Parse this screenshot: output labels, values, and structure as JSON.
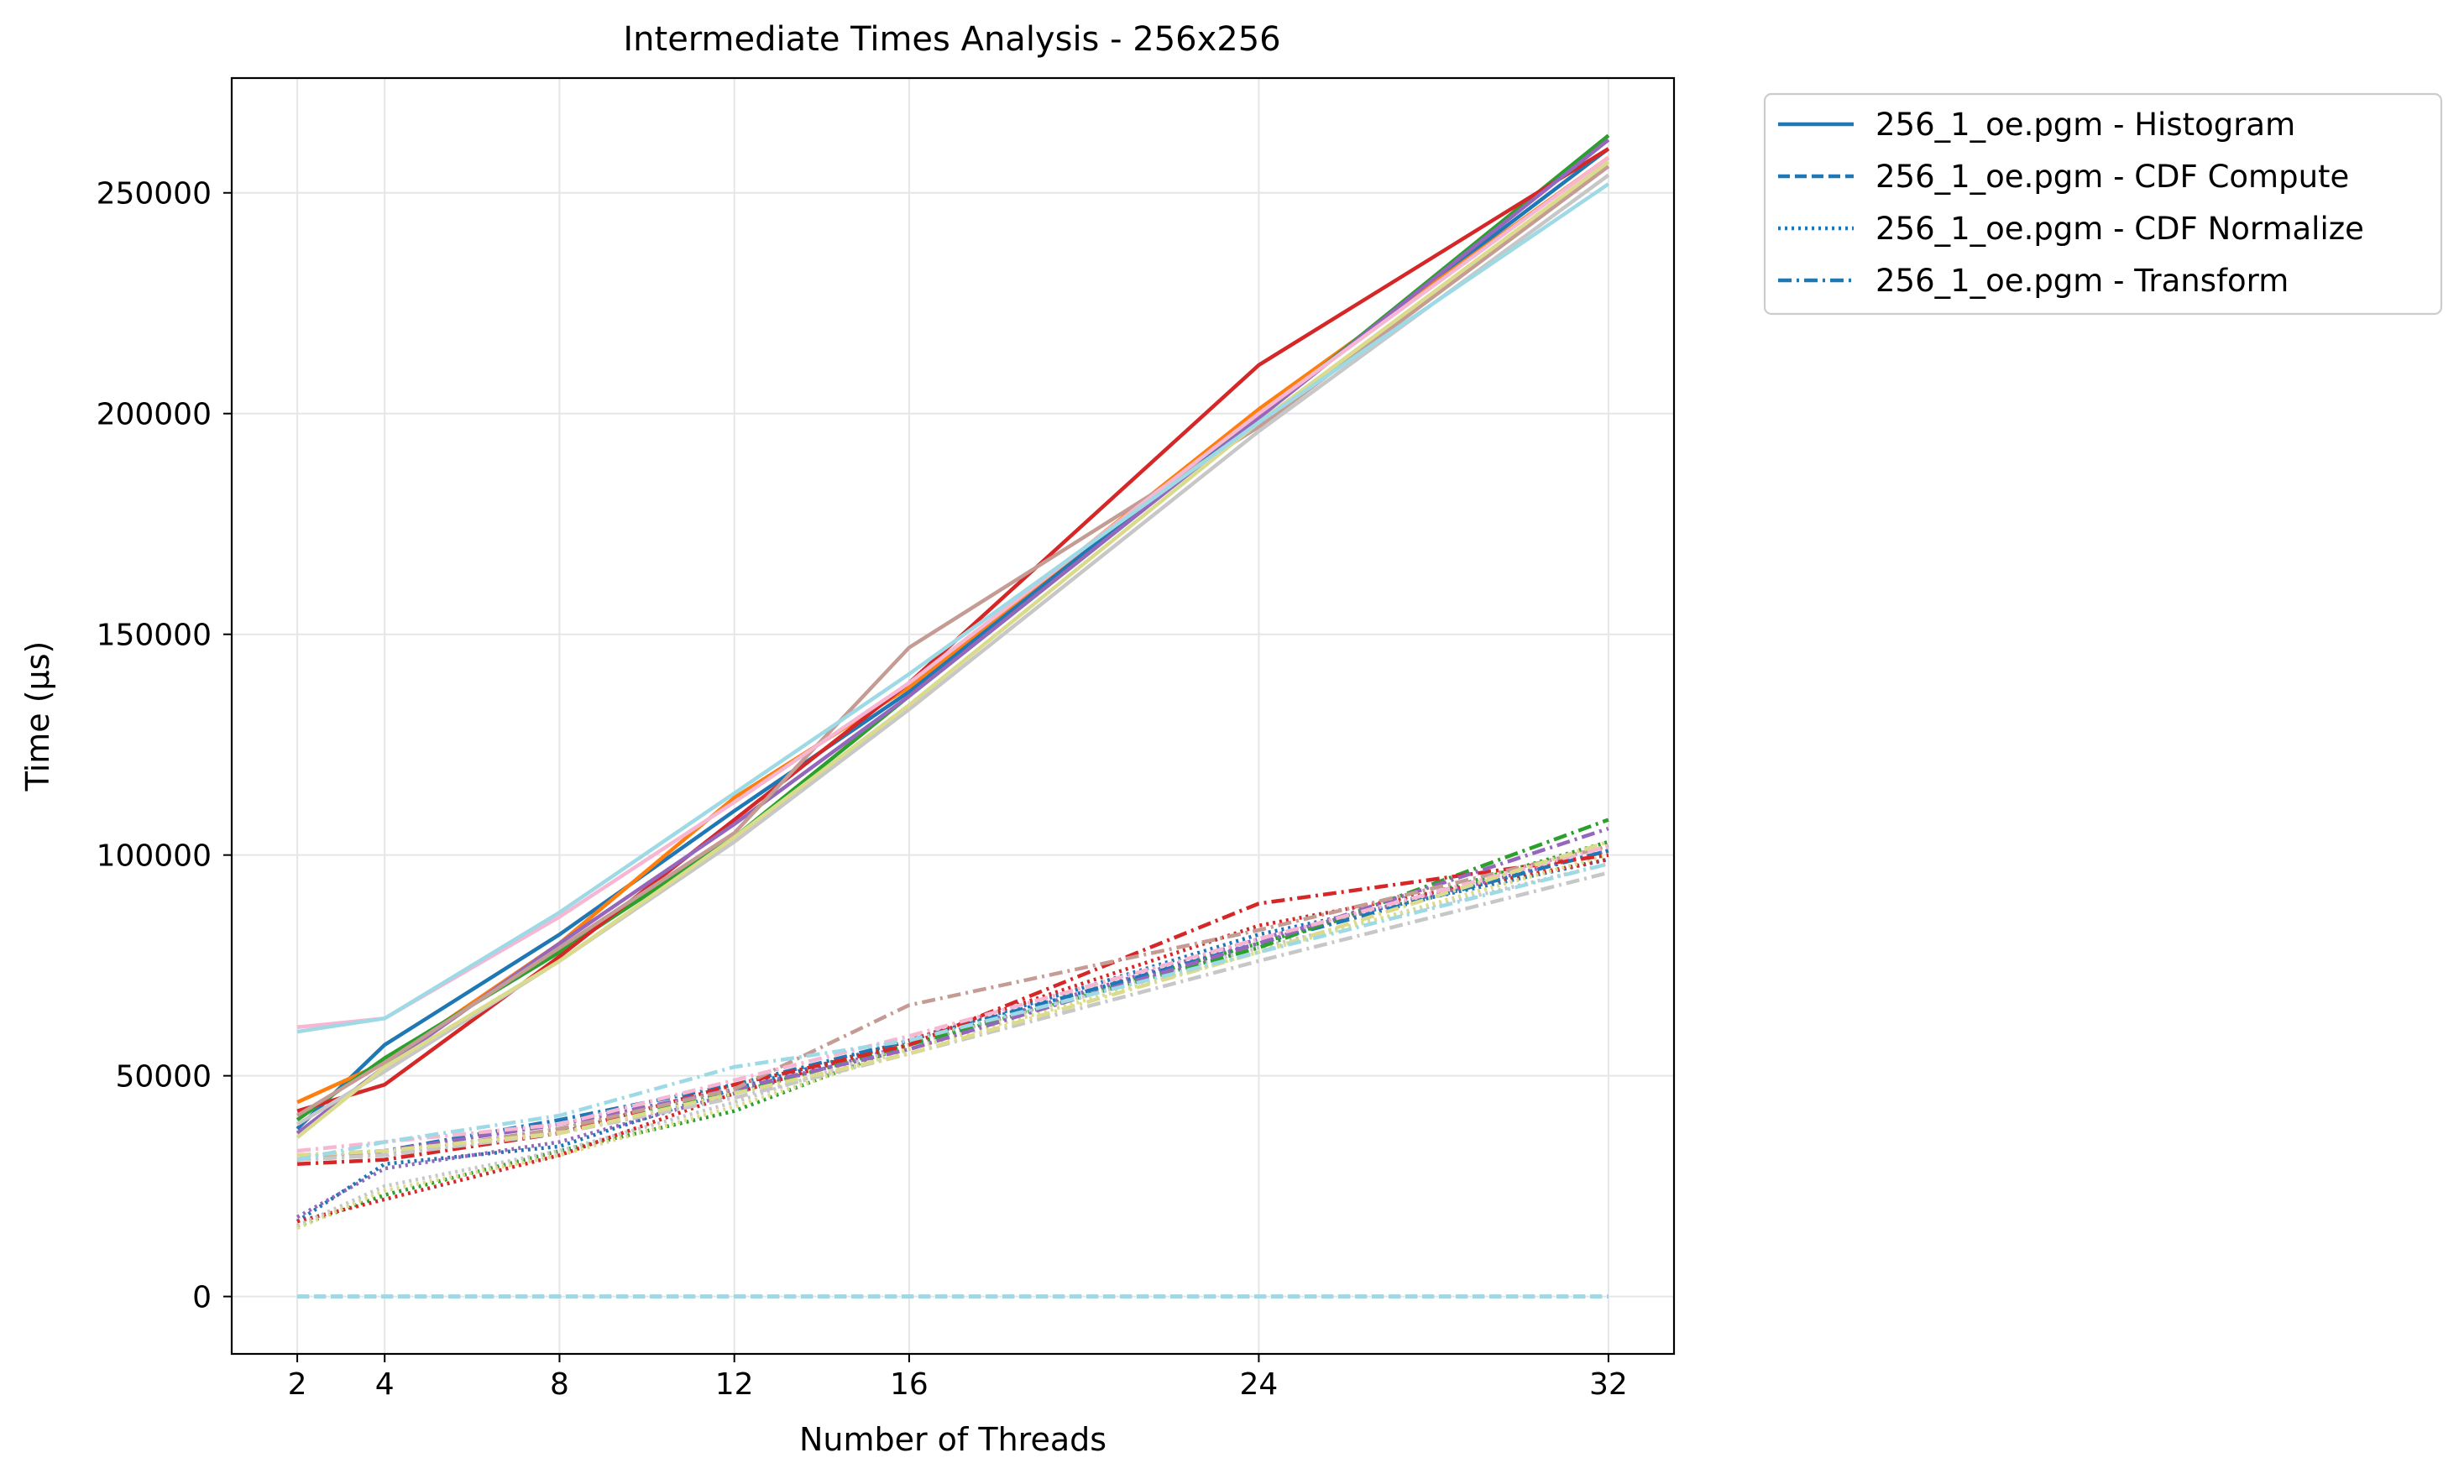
{
  "chart_data": {
    "type": "line",
    "title": "Intermediate Times Analysis - 256x256",
    "xlabel": "Number of Threads",
    "ylabel": "Time (µs)",
    "x": [
      2,
      4,
      8,
      12,
      16,
      24,
      32
    ],
    "xticks": [
      2,
      4,
      8,
      12,
      16,
      24,
      32
    ],
    "yticks": [
      0,
      50000,
      100000,
      150000,
      200000,
      250000
    ],
    "xlim": [
      0.5,
      33.5
    ],
    "ylim": [
      -13000,
      276000
    ],
    "grid": true,
    "legend_position": "outside top-right",
    "legend": [
      {
        "label": "256_1_oe.pgm - Histogram",
        "style": "solid",
        "color": "#1f77b4"
      },
      {
        "label": "256_1_oe.pgm - CDF Compute",
        "style": "dashed",
        "color": "#1f77b4"
      },
      {
        "label": "256_1_oe.pgm - CDF Normalize",
        "style": "dotted",
        "color": "#1f77b4"
      },
      {
        "label": "256_1_oe.pgm - Transform",
        "style": "dashdot",
        "color": "#1f77b4"
      }
    ],
    "series": [
      {
        "style": "solid",
        "color": "#1f77b4",
        "values": [
          38000,
          57000,
          82000,
          110000,
          137000,
          200000,
          260000
        ]
      },
      {
        "style": "solid",
        "color": "#ff7f0e",
        "values": [
          44000,
          53000,
          80000,
          113000,
          138000,
          201000,
          258000
        ]
      },
      {
        "style": "solid",
        "color": "#2ca02c",
        "values": [
          40000,
          54000,
          78000,
          104000,
          136000,
          199000,
          263000
        ]
      },
      {
        "style": "solid",
        "color": "#d62728",
        "values": [
          42000,
          48000,
          77000,
          108000,
          139000,
          211000,
          260000
        ]
      },
      {
        "style": "solid",
        "color": "#9467bd",
        "values": [
          37000,
          52000,
          80000,
          107000,
          136000,
          199000,
          262000
        ]
      },
      {
        "style": "solid",
        "color": "#c49c94",
        "values": [
          41000,
          53000,
          79000,
          105000,
          147000,
          197000,
          256000
        ]
      },
      {
        "style": "solid",
        "color": "#f7b6d2",
        "values": [
          61000,
          63000,
          86000,
          112000,
          139000,
          200000,
          258000
        ]
      },
      {
        "style": "solid",
        "color": "#c7c7c7",
        "values": [
          39000,
          51000,
          76000,
          103000,
          133000,
          196000,
          254000
        ]
      },
      {
        "style": "solid",
        "color": "#dbdb8d",
        "values": [
          36000,
          52000,
          76000,
          104000,
          134000,
          198000,
          257000
        ]
      },
      {
        "style": "solid",
        "color": "#9edae5",
        "values": [
          60000,
          63000,
          87000,
          114000,
          141000,
          198000,
          252000
        ]
      },
      {
        "style": "dashed",
        "color": "#1f77b4",
        "values": [
          0,
          0,
          0,
          0,
          0,
          0,
          0
        ]
      },
      {
        "style": "dashed",
        "color": "#c7c7c7",
        "values": [
          0,
          0,
          0,
          0,
          0,
          0,
          0
        ]
      },
      {
        "style": "dashed",
        "color": "#9edae5",
        "values": [
          0,
          0,
          0,
          0,
          0,
          0,
          0
        ]
      },
      {
        "style": "dotted",
        "color": "#1f77b4",
        "values": [
          17000,
          30000,
          34000,
          47000,
          58000,
          82000,
          99000
        ]
      },
      {
        "style": "dotted",
        "color": "#2ca02c",
        "values": [
          16000,
          23000,
          33000,
          42000,
          57000,
          80000,
          103000
        ]
      },
      {
        "style": "dotted",
        "color": "#d62728",
        "values": [
          17000,
          22000,
          32000,
          46000,
          58000,
          84000,
          99000
        ]
      },
      {
        "style": "dotted",
        "color": "#9467bd",
        "values": [
          18000,
          29000,
          35000,
          46000,
          57000,
          81000,
          101000
        ]
      },
      {
        "style": "dotted",
        "color": "#c7c7c7",
        "values": [
          16000,
          25000,
          33000,
          44000,
          57000,
          79000,
          98000
        ]
      },
      {
        "style": "dotted",
        "color": "#dbdb8d",
        "values": [
          15500,
          24000,
          32000,
          43000,
          56000,
          78000,
          100000
        ]
      },
      {
        "style": "dashdot",
        "color": "#1f77b4",
        "values": [
          31000,
          33000,
          40000,
          48000,
          58000,
          80000,
          101000
        ]
      },
      {
        "style": "dashdot",
        "color": "#2ca02c",
        "values": [
          32000,
          32000,
          38000,
          46000,
          57000,
          79000,
          108000
        ]
      },
      {
        "style": "dashdot",
        "color": "#d62728",
        "values": [
          30000,
          31000,
          37000,
          48000,
          57000,
          89000,
          100000
        ]
      },
      {
        "style": "dashdot",
        "color": "#9467bd",
        "values": [
          32000,
          33000,
          39000,
          47000,
          56000,
          80000,
          106000
        ]
      },
      {
        "style": "dashdot",
        "color": "#c49c94",
        "values": [
          32000,
          32000,
          38000,
          47000,
          66000,
          83000,
          102000
        ]
      },
      {
        "style": "dashdot",
        "color": "#f7b6d2",
        "values": [
          33000,
          35000,
          39000,
          49000,
          59000,
          81000,
          102000
        ]
      },
      {
        "style": "dashdot",
        "color": "#c7c7c7",
        "values": [
          31000,
          32000,
          37000,
          45000,
          55000,
          76000,
          96000
        ]
      },
      {
        "style": "dashdot",
        "color": "#dbdb8d",
        "values": [
          32000,
          33000,
          37000,
          46000,
          55000,
          78000,
          103000
        ]
      },
      {
        "style": "dashdot",
        "color": "#9edae5",
        "values": [
          31000,
          35000,
          41000,
          52000,
          58000,
          78000,
          98000
        ]
      }
    ]
  }
}
